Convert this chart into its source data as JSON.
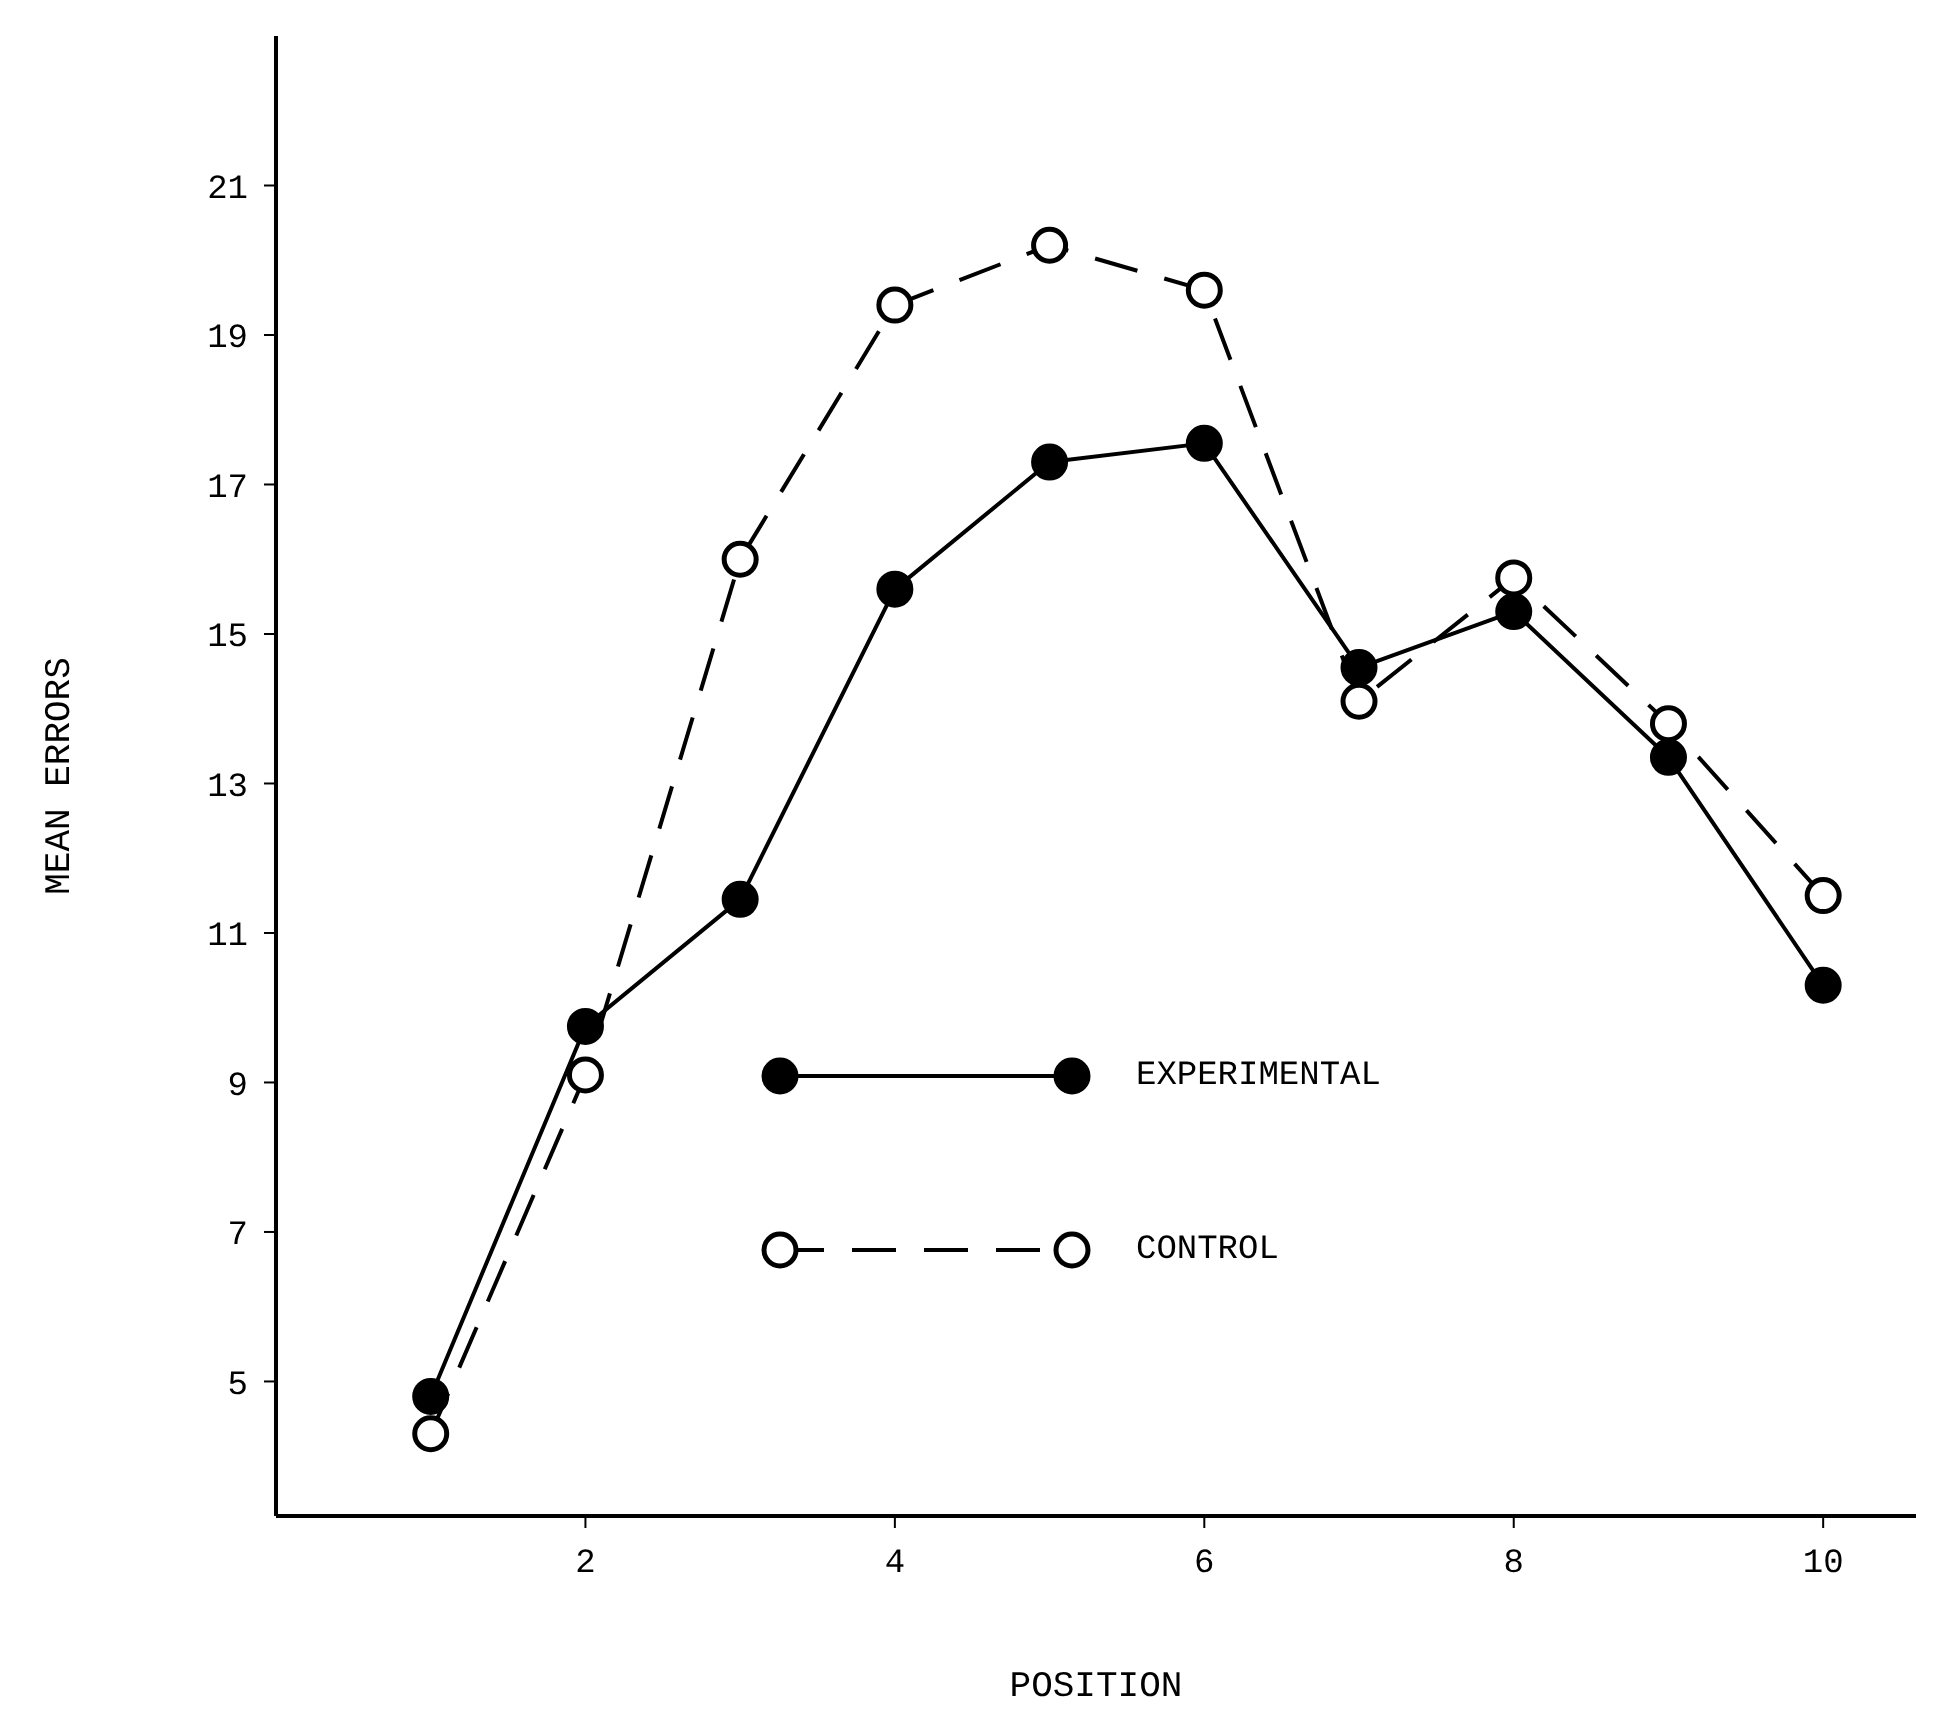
{
  "chart_data": {
    "type": "line",
    "xlabel": "POSITION",
    "ylabel": "MEAN ERRORS",
    "x": [
      1,
      2,
      3,
      4,
      5,
      6,
      7,
      8,
      9,
      10
    ],
    "series": [
      {
        "name": "EXPERIMENTAL",
        "color": "#000000",
        "line_style": "solid",
        "values": [
          4.8,
          9.75,
          11.45,
          15.6,
          17.3,
          17.55,
          14.55,
          15.3,
          13.35,
          10.3
        ]
      },
      {
        "name": "CONTROL",
        "color": "#000000",
        "line_style": "dashed",
        "values": [
          4.3,
          9.1,
          16.0,
          19.4,
          20.2,
          19.6,
          14.1,
          15.75,
          13.8,
          11.5
        ]
      }
    ],
    "xlim": [
      0,
      10.6
    ],
    "xticks": [
      2,
      4,
      6,
      8,
      10
    ],
    "ylim": [
      3.2,
      23
    ],
    "yticks": [
      5,
      7,
      9,
      11,
      13,
      15,
      17,
      19,
      21
    ],
    "grid": false,
    "legend": "bottom",
    "marker": "circle"
  }
}
